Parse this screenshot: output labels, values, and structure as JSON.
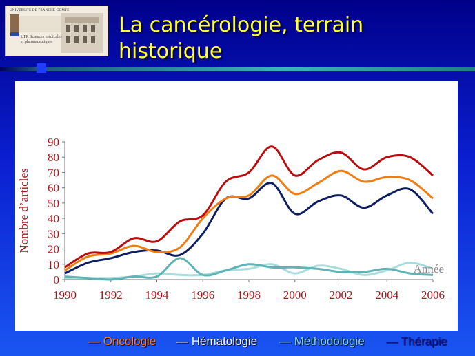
{
  "header": {
    "logo": {
      "university": "UNIVERSITÉ DE FRANCHE-COMTÉ",
      "ufr": "UFR Sciences médicales et pharmaceutiques"
    },
    "title_line1": "La cancérologie, terrain",
    "title_line2": "historique"
  },
  "legend": {
    "items": [
      {
        "dash": "—",
        "label": "Oncologie",
        "color": "#ff7a1a"
      },
      {
        "dash": "—",
        "label": "Hématologie",
        "color": "#ffffff"
      },
      {
        "dash": "—",
        "label": "Méthodologie",
        "color": "#7fcfd6"
      },
      {
        "dash": "—",
        "label": "Thérapie",
        "color": "#1a1a9a"
      }
    ]
  },
  "chart_data": {
    "type": "line",
    "title": "",
    "xlabel": "Année",
    "ylabel": "Nombre d’articles",
    "xlim": [
      1990,
      2006
    ],
    "ylim": [
      0,
      90
    ],
    "xticks": [
      "1990",
      "1992",
      "1994",
      "1996",
      "1998",
      "2000",
      "2002",
      "2004",
      "2006"
    ],
    "yticks": [
      "0",
      "10",
      "20",
      "30",
      "40",
      "50",
      "60",
      "70",
      "80",
      "90"
    ],
    "grid": false,
    "x": [
      1990,
      1991,
      1992,
      1993,
      1994,
      1995,
      1996,
      1997,
      1998,
      1999,
      2000,
      2001,
      2002,
      2003,
      2004,
      2005,
      2006
    ],
    "series": [
      {
        "color": "#b80e0e",
        "values": [
          8,
          17,
          18,
          27,
          25,
          38,
          42,
          64,
          70,
          87,
          68,
          78,
          83,
          72,
          80,
          80,
          68
        ]
      },
      {
        "color": "#f07d12",
        "values": [
          6,
          15,
          17,
          22,
          18,
          21,
          40,
          53,
          55,
          68,
          56,
          63,
          71,
          64,
          67,
          65,
          53
        ]
      },
      {
        "color": "#0e1e5e",
        "values": [
          4,
          11,
          14,
          18,
          19,
          16,
          30,
          53,
          53,
          63,
          43,
          51,
          55,
          47,
          55,
          59,
          43
        ]
      },
      {
        "color": "#5fb3b5",
        "values": [
          2,
          1,
          0,
          2,
          2,
          14,
          3,
          6,
          10,
          8,
          8,
          7,
          5,
          5,
          7,
          4,
          3
        ]
      },
      {
        "color": "#a9dddd",
        "values": [
          1,
          1,
          1,
          2,
          4,
          3,
          3,
          6,
          7,
          10,
          4,
          9,
          7,
          3,
          6,
          11,
          7
        ]
      }
    ]
  }
}
